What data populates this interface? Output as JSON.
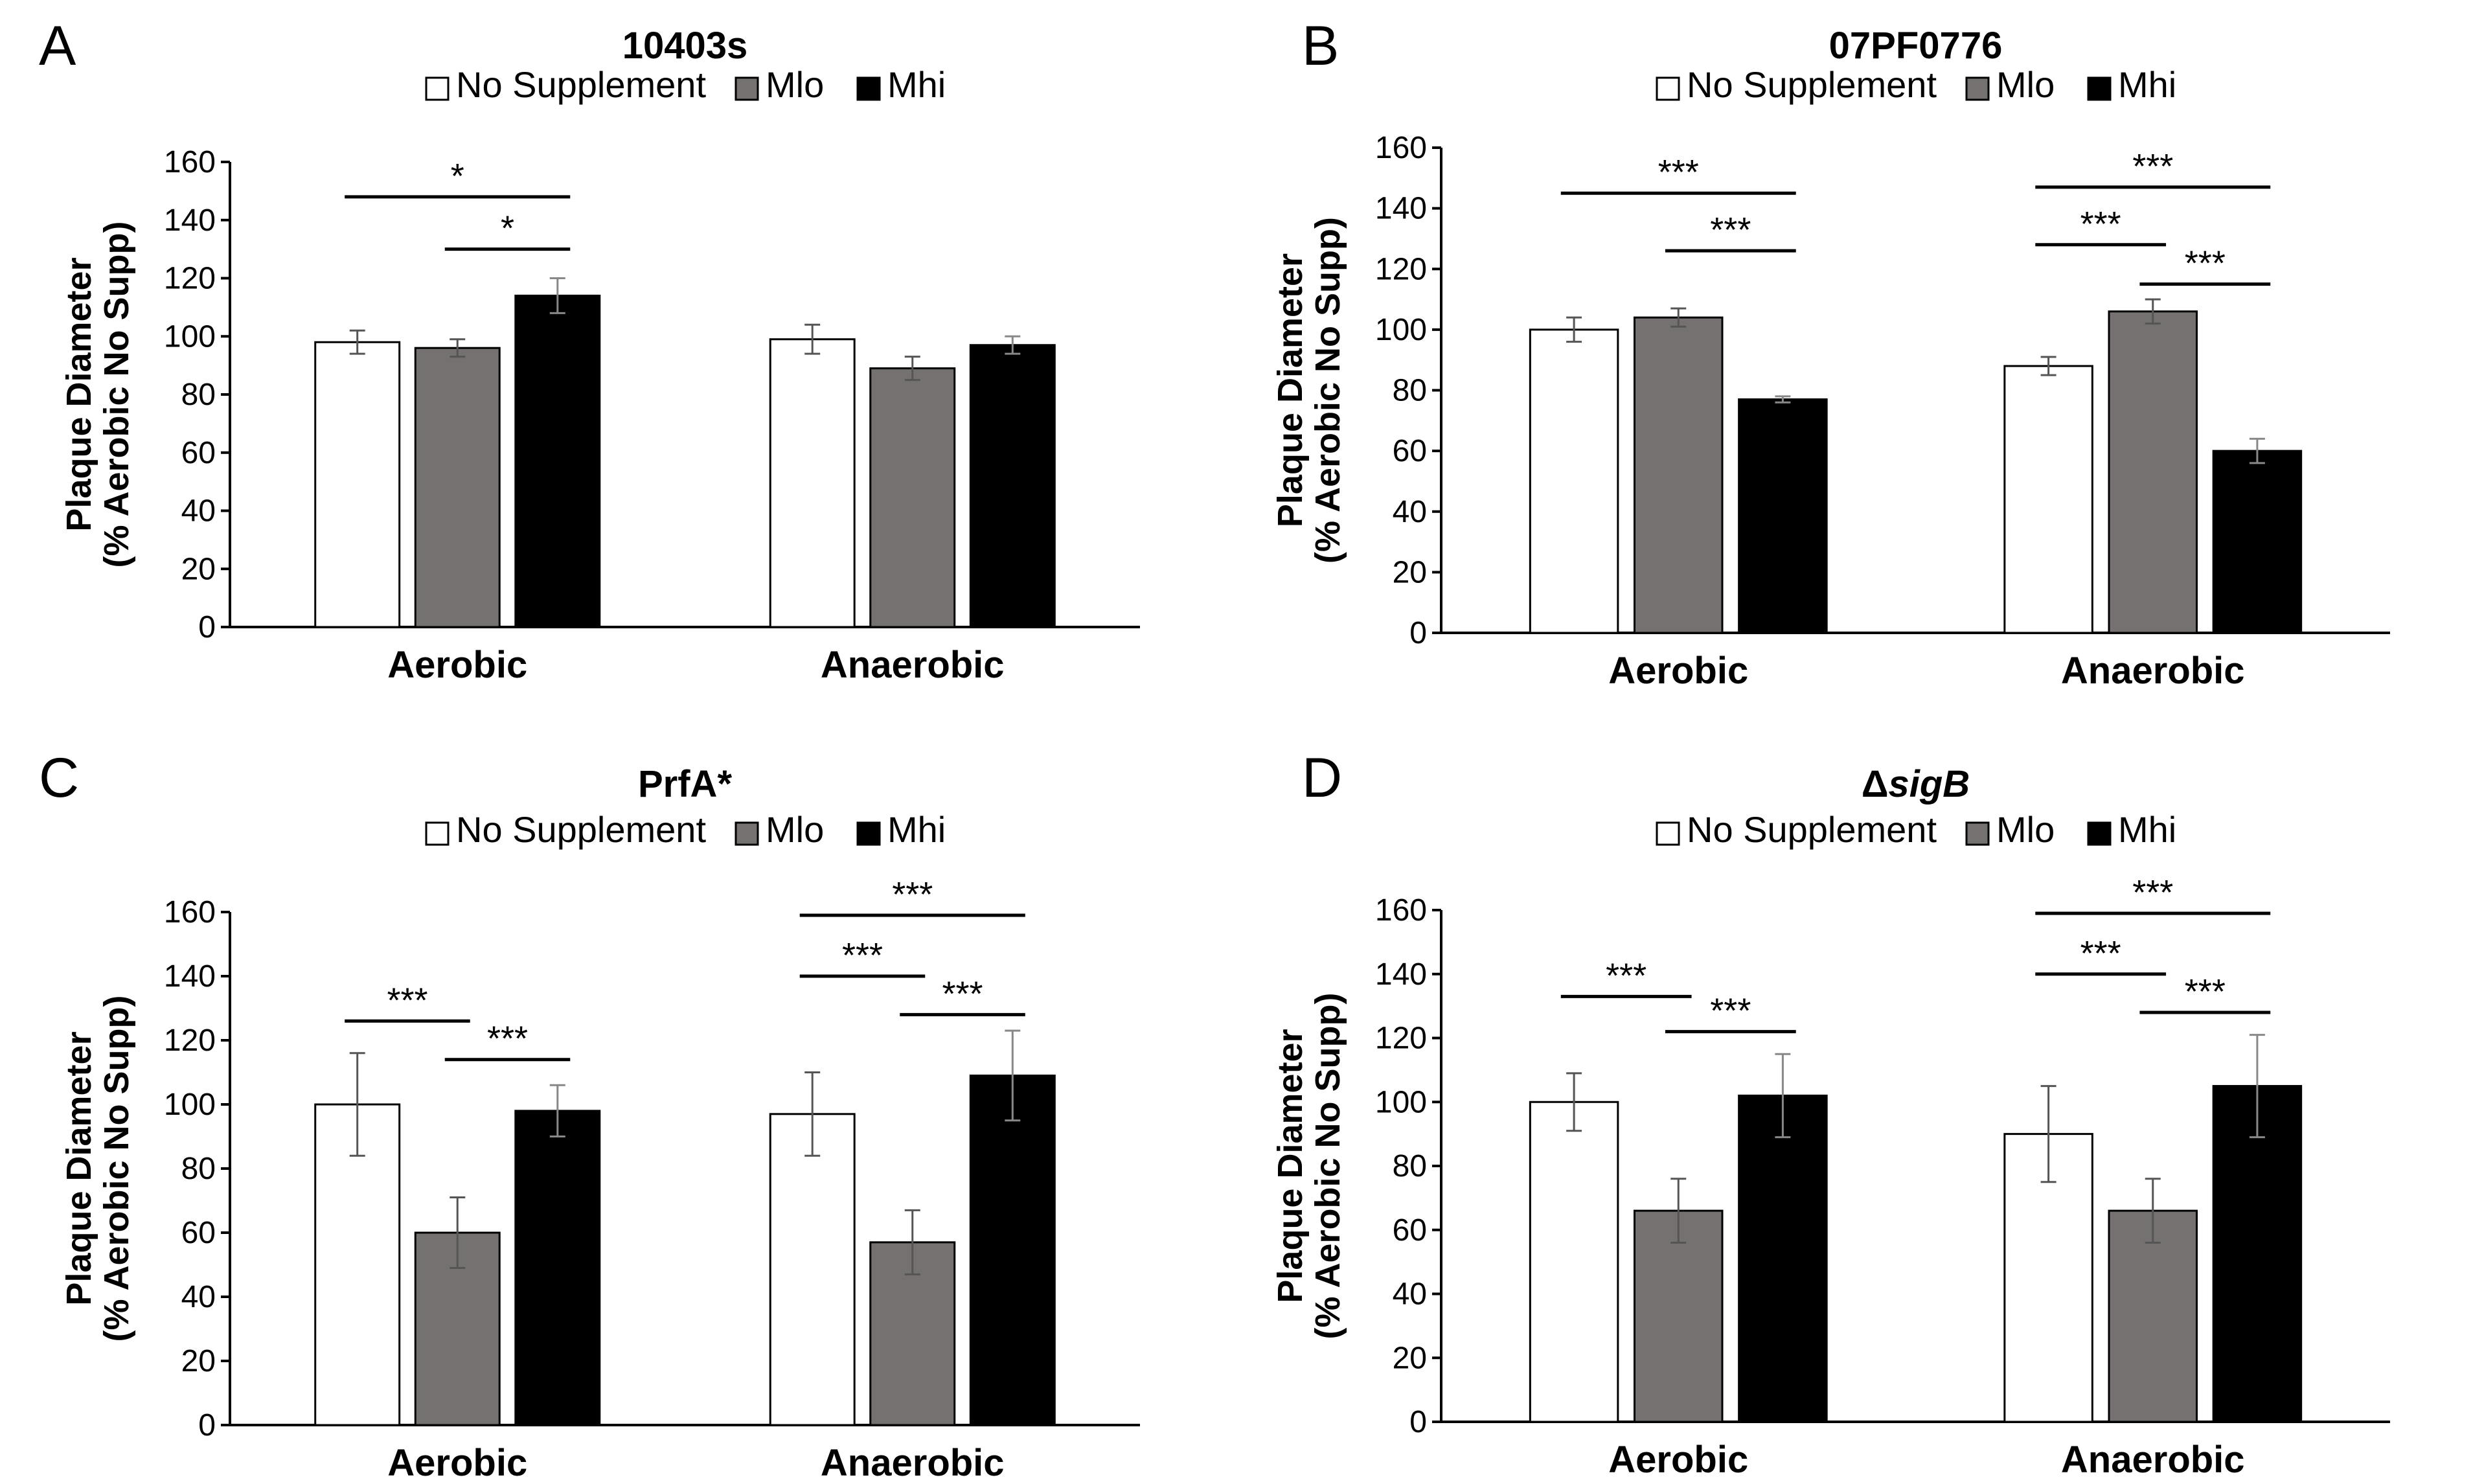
{
  "colors": {
    "no_supplement": "#ffffff",
    "mlo": "#767171",
    "mhi": "#000000",
    "axis": "#000000",
    "errorbar": "#555555"
  },
  "chart_data": [
    {
      "panel": "A",
      "type": "bar",
      "title": "10403s",
      "title_italic": "",
      "title_prefix": "",
      "xlabel": "",
      "ylabel_line1": "Plaque Diameter",
      "ylabel_line2": "(% Aerobic No Supp)",
      "ylim": [
        0,
        160
      ],
      "yticks": [
        0,
        20,
        40,
        60,
        80,
        100,
        120,
        140,
        160
      ],
      "grid": false,
      "legend": [
        "No Supplement",
        "Mlo",
        "Mhi"
      ],
      "categories": [
        "Aerobic",
        "Anaerobic"
      ],
      "series": [
        {
          "name": "No Supplement",
          "values": [
            98,
            99
          ],
          "errors": [
            4,
            5
          ]
        },
        {
          "name": "Mlo",
          "values": [
            96,
            89
          ],
          "errors": [
            3,
            4
          ]
        },
        {
          "name": "Mhi",
          "values": [
            114,
            97
          ],
          "errors": [
            6,
            3
          ]
        }
      ],
      "significance": [
        {
          "category": 0,
          "from": 0,
          "to": 2,
          "y": 148,
          "label": "*"
        },
        {
          "category": 0,
          "from": 1,
          "to": 2,
          "y": 130,
          "label": "*"
        }
      ]
    },
    {
      "panel": "B",
      "type": "bar",
      "title": "07PF0776",
      "title_italic": "",
      "title_prefix": "",
      "xlabel": "",
      "ylabel_line1": "Plaque Diameter",
      "ylabel_line2": "(% Aerobic No Supp)",
      "ylim": [
        0,
        160
      ],
      "yticks": [
        0,
        20,
        40,
        60,
        80,
        100,
        120,
        140,
        160
      ],
      "grid": false,
      "legend": [
        "No Supplement",
        "Mlo",
        "Mhi"
      ],
      "categories": [
        "Aerobic",
        "Anaerobic"
      ],
      "series": [
        {
          "name": "No Supplement",
          "values": [
            100,
            88
          ],
          "errors": [
            4,
            3
          ]
        },
        {
          "name": "Mlo",
          "values": [
            104,
            106
          ],
          "errors": [
            3,
            4
          ]
        },
        {
          "name": "Mhi",
          "values": [
            77,
            60
          ],
          "errors": [
            1,
            4
          ]
        }
      ],
      "significance": [
        {
          "category": 0,
          "from": 0,
          "to": 2,
          "y": 145,
          "label": "***"
        },
        {
          "category": 0,
          "from": 1,
          "to": 2,
          "y": 126,
          "label": "***"
        },
        {
          "category": 1,
          "from": 0,
          "to": 2,
          "y": 147,
          "label": "***"
        },
        {
          "category": 1,
          "from": 0,
          "to": 1,
          "y": 128,
          "label": "***"
        },
        {
          "category": 1,
          "from": 1,
          "to": 2,
          "y": 115,
          "label": "***"
        }
      ]
    },
    {
      "panel": "C",
      "type": "bar",
      "title": "PrfA*",
      "title_italic": "",
      "title_prefix": "",
      "xlabel": "",
      "ylabel_line1": "Plaque Diameter",
      "ylabel_line2": "(% Aerobic No Supp)",
      "ylim": [
        0,
        160
      ],
      "yticks": [
        0,
        20,
        40,
        60,
        80,
        100,
        120,
        140,
        160
      ],
      "grid": false,
      "legend": [
        "No Supplement",
        "Mlo",
        "Mhi"
      ],
      "categories": [
        "Aerobic",
        "Anaerobic"
      ],
      "series": [
        {
          "name": "No Supplement",
          "values": [
            100,
            97
          ],
          "errors": [
            16,
            13
          ]
        },
        {
          "name": "Mlo",
          "values": [
            60,
            57
          ],
          "errors": [
            11,
            10
          ]
        },
        {
          "name": "Mhi",
          "values": [
            98,
            109
          ],
          "errors": [
            8,
            14
          ]
        }
      ],
      "significance": [
        {
          "category": 0,
          "from": 0,
          "to": 1,
          "y": 126,
          "label": "***"
        },
        {
          "category": 0,
          "from": 1,
          "to": 2,
          "y": 114,
          "label": "***"
        },
        {
          "category": 1,
          "from": 0,
          "to": 2,
          "y": 159,
          "label": "***"
        },
        {
          "category": 1,
          "from": 0,
          "to": 1,
          "y": 140,
          "label": "***"
        },
        {
          "category": 1,
          "from": 1,
          "to": 2,
          "y": 128,
          "label": "***"
        }
      ]
    },
    {
      "panel": "D",
      "type": "bar",
      "title": "sigB",
      "title_italic": "sigB",
      "title_prefix": "Δ",
      "xlabel": "",
      "ylabel_line1": "Plaque Diameter",
      "ylabel_line2": "(% Aerobic No Supp)",
      "ylim": [
        0,
        160
      ],
      "yticks": [
        0,
        20,
        40,
        60,
        80,
        100,
        120,
        140,
        160
      ],
      "grid": false,
      "legend": [
        "No Supplement",
        "Mlo",
        "Mhi"
      ],
      "categories": [
        "Aerobic",
        "Anaerobic"
      ],
      "series": [
        {
          "name": "No Supplement",
          "values": [
            100,
            90
          ],
          "errors": [
            9,
            15
          ]
        },
        {
          "name": "Mlo",
          "values": [
            66,
            66
          ],
          "errors": [
            10,
            10
          ]
        },
        {
          "name": "Mhi",
          "values": [
            102,
            105
          ],
          "errors": [
            13,
            16
          ]
        }
      ],
      "significance": [
        {
          "category": 0,
          "from": 0,
          "to": 1,
          "y": 133,
          "label": "***"
        },
        {
          "category": 0,
          "from": 1,
          "to": 2,
          "y": 122,
          "label": "***"
        },
        {
          "category": 1,
          "from": 0,
          "to": 2,
          "y": 159,
          "label": "***"
        },
        {
          "category": 1,
          "from": 0,
          "to": 1,
          "y": 140,
          "label": "***"
        },
        {
          "category": 1,
          "from": 1,
          "to": 2,
          "y": 128,
          "label": "***"
        }
      ]
    }
  ]
}
